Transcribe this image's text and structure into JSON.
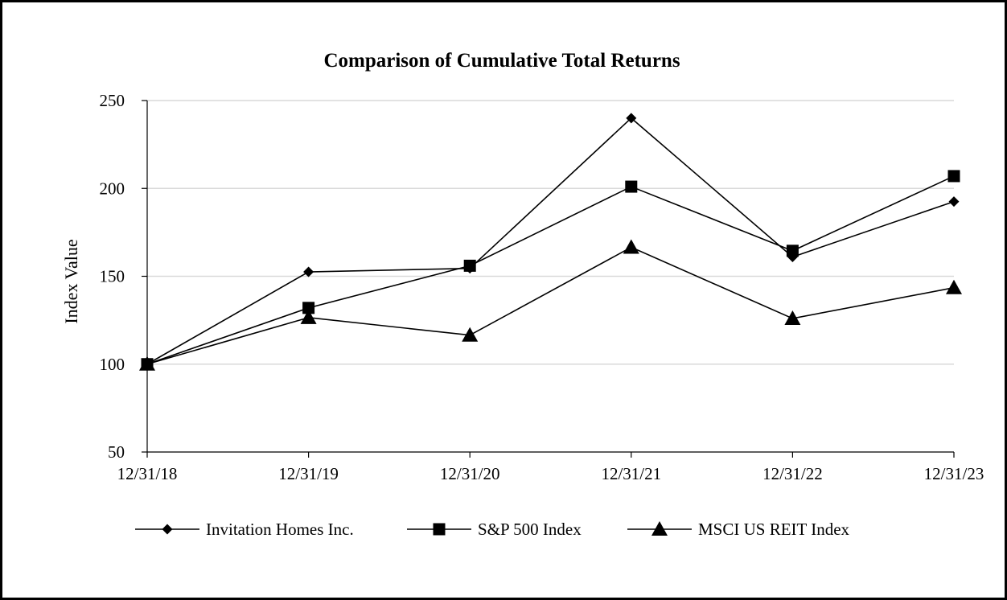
{
  "chart_data": {
    "type": "line",
    "title": "Comparison of Cumulative Total Returns",
    "xlabel": "",
    "ylabel": "Index Value",
    "categories": [
      "12/31/18",
      "12/31/19",
      "12/31/20",
      "12/31/21",
      "12/31/22",
      "12/31/23"
    ],
    "ylim": [
      50,
      250
    ],
    "yticks": [
      50,
      100,
      150,
      200,
      250
    ],
    "grid": true,
    "legend_position": "bottom",
    "series": [
      {
        "name": "Invitation Homes Inc.",
        "marker": "diamond",
        "values": [
          100,
          152.5,
          154.5,
          240,
          161,
          192.5
        ]
      },
      {
        "name": "S&P 500 Index",
        "marker": "square",
        "values": [
          100,
          132,
          156,
          201,
          164.5,
          207
        ]
      },
      {
        "name": "MSCI US REIT Index",
        "marker": "triangle",
        "values": [
          100,
          126.5,
          116.5,
          166.5,
          126,
          143.5
        ]
      }
    ],
    "colors": {
      "line": "#000000",
      "grid": "#d9d9d9",
      "axis": "#000000"
    }
  }
}
